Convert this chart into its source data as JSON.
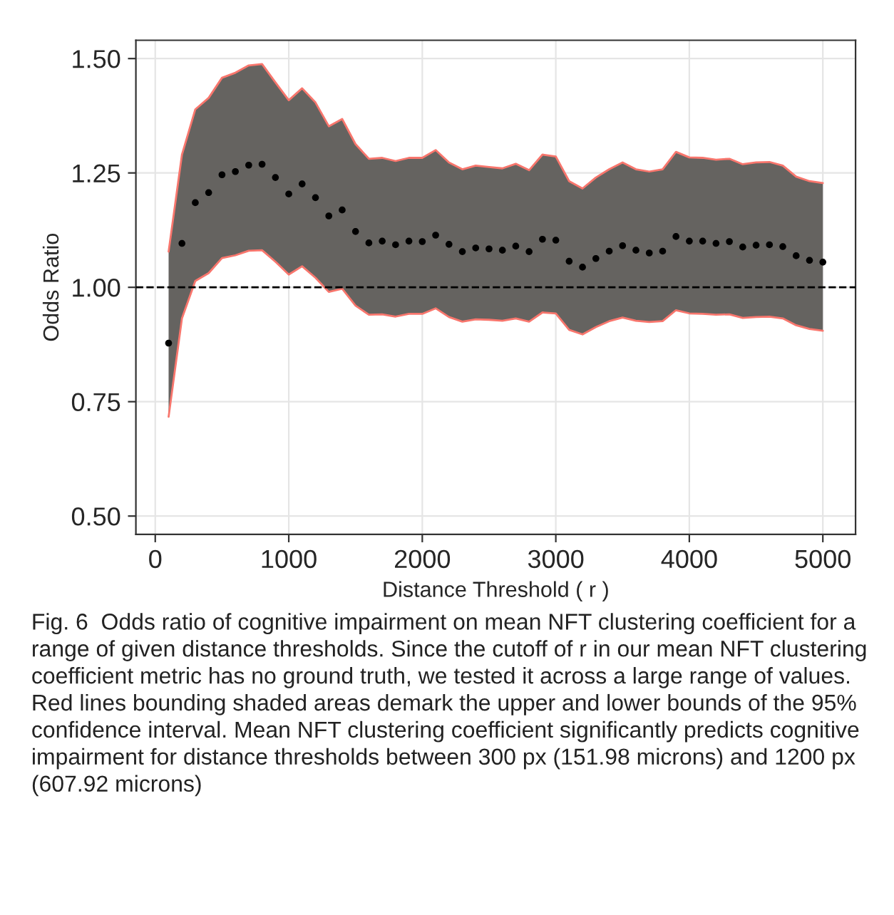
{
  "chart_data": {
    "type": "scatter",
    "xlabel": "Distance Threshold ( r )",
    "ylabel": "Odds Ratio",
    "x": [
      100,
      200,
      300,
      400,
      500,
      600,
      700,
      800,
      900,
      1000,
      1100,
      1200,
      1300,
      1400,
      1500,
      1600,
      1700,
      1800,
      1900,
      2000,
      2100,
      2200,
      2300,
      2400,
      2500,
      2600,
      2700,
      2800,
      2900,
      3000,
      3100,
      3200,
      3300,
      3400,
      3500,
      3600,
      3700,
      3800,
      3900,
      4000,
      4100,
      4200,
      4300,
      4400,
      4500,
      4600,
      4700,
      4800,
      4900,
      5000
    ],
    "series": [
      {
        "color": "#000000",
        "values": [
          0.878,
          1.096,
          1.185,
          1.207,
          1.246,
          1.253,
          1.267,
          1.269,
          1.24,
          1.204,
          1.226,
          1.196,
          1.156,
          1.169,
          1.122,
          1.097,
          1.101,
          1.093,
          1.101,
          1.1,
          1.114,
          1.094,
          1.078,
          1.086,
          1.084,
          1.081,
          1.09,
          1.078,
          1.105,
          1.103,
          1.057,
          1.044,
          1.063,
          1.079,
          1.091,
          1.081,
          1.075,
          1.079,
          1.111,
          1.101,
          1.101,
          1.096,
          1.1,
          1.088,
          1.092,
          1.093,
          1.089,
          1.069,
          1.059,
          1.055
        ],
        "upper": [
          1.078,
          1.29,
          1.389,
          1.414,
          1.458,
          1.469,
          1.485,
          1.488,
          1.448,
          1.409,
          1.435,
          1.404,
          1.352,
          1.368,
          1.313,
          1.281,
          1.283,
          1.276,
          1.283,
          1.283,
          1.3,
          1.273,
          1.258,
          1.266,
          1.263,
          1.26,
          1.27,
          1.256,
          1.29,
          1.286,
          1.232,
          1.216,
          1.24,
          1.258,
          1.273,
          1.258,
          1.253,
          1.258,
          1.296,
          1.284,
          1.283,
          1.279,
          1.281,
          1.269,
          1.273,
          1.274,
          1.266,
          1.242,
          1.232,
          1.228
        ],
        "lower": [
          0.717,
          0.932,
          1.014,
          1.031,
          1.064,
          1.07,
          1.08,
          1.081,
          1.056,
          1.028,
          1.046,
          1.021,
          0.99,
          0.997,
          0.96,
          0.94,
          0.941,
          0.936,
          0.942,
          0.942,
          0.954,
          0.935,
          0.925,
          0.93,
          0.929,
          0.927,
          0.932,
          0.925,
          0.945,
          0.943,
          0.907,
          0.897,
          0.913,
          0.926,
          0.934,
          0.927,
          0.924,
          0.926,
          0.95,
          0.943,
          0.942,
          0.94,
          0.941,
          0.933,
          0.935,
          0.936,
          0.932,
          0.917,
          0.909,
          0.905
        ]
      },
      {
        "type": "line",
        "color": "#f8766d",
        "marker": "none",
        "values": [
          1.078,
          1.29,
          1.389,
          1.414,
          1.458,
          1.469,
          1.485,
          1.488,
          1.448,
          1.409,
          1.435,
          1.404,
          1.352,
          1.368,
          1.313,
          1.281,
          1.283,
          1.276,
          1.283,
          1.283,
          1.3,
          1.273,
          1.258,
          1.266,
          1.263,
          1.26,
          1.27,
          1.256,
          1.29,
          1.286,
          1.232,
          1.216,
          1.24,
          1.258,
          1.273,
          1.258,
          1.253,
          1.258,
          1.296,
          1.284,
          1.283,
          1.279,
          1.281,
          1.269,
          1.273,
          1.274,
          1.266,
          1.242,
          1.232,
          1.228
        ]
      },
      {
        "type": "line",
        "color": "#f8766d",
        "marker": "none",
        "values": [
          0.717,
          0.932,
          1.014,
          1.031,
          1.064,
          1.07,
          1.08,
          1.081,
          1.056,
          1.028,
          1.046,
          1.021,
          0.99,
          0.997,
          0.96,
          0.94,
          0.941,
          0.936,
          0.942,
          0.942,
          0.954,
          0.935,
          0.925,
          0.93,
          0.929,
          0.927,
          0.932,
          0.925,
          0.945,
          0.943,
          0.907,
          0.897,
          0.913,
          0.926,
          0.934,
          0.927,
          0.924,
          0.926,
          0.95,
          0.943,
          0.942,
          0.94,
          0.941,
          0.933,
          0.935,
          0.936,
          0.932,
          0.917,
          0.909,
          0.905
        ]
      }
    ],
    "xlim": [
      -145,
      5245
    ],
    "xticks": [
      0,
      1000,
      2000,
      3000,
      4000,
      5000
    ],
    "ylim": [
      0.46,
      1.54
    ],
    "yticks": [
      {
        "value": 0.5,
        "label": "0.50"
      },
      {
        "value": 0.75,
        "label": "0.75"
      },
      {
        "value": 1.0,
        "label": "1.00"
      },
      {
        "value": 1.25,
        "label": "1.25"
      },
      {
        "value": 1.5,
        "label": "1.50"
      }
    ],
    "ref_lines": [
      {
        "axis": "y",
        "value": 1.0,
        "color": "#000000",
        "line_style": "dashed"
      }
    ],
    "grid": true,
    "marker": "circle",
    "annotations": [
      "Fig. 6  Odds ratio of cognitive impairment on mean NFT clustering coefficient for a range of given distance thresholds. Since the cutoff of r in our mean NFT clustering coefficient metric has no ground truth, we tested it across a large range of values. Red lines bounding shaded areas demark the upper and lower bounds of the 95% confidence interval. Mean NFT clustering coefficient significantly predicts cognitive impairment for distance thresholds between 300 px (151.98 microns) and 1200 px (607.92 microns)"
    ]
  }
}
